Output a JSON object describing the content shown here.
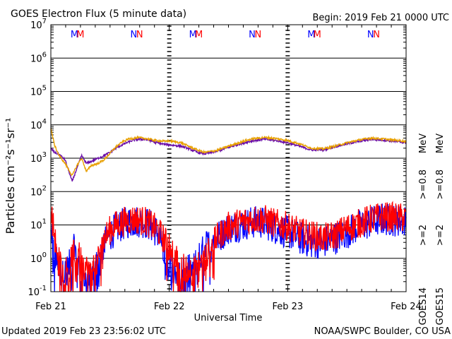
{
  "chart_data": {
    "type": "line",
    "title": "GOES Electron Flux (5 minute data)",
    "begin_label": "Begin: 2019 Feb 21 0000 UTC",
    "xlabel": "Universal Time",
    "ylabel": "Particles cm⁻²s⁻¹sr⁻¹",
    "y_scale": "log",
    "ylim": [
      0.1,
      10000000
    ],
    "xlim_days": [
      0,
      3
    ],
    "x_ticks": [
      {
        "label": "Feb 21",
        "day": 0
      },
      {
        "label": "Feb 22",
        "day": 1
      },
      {
        "label": "Feb 23",
        "day": 2
      },
      {
        "label": "Feb 24",
        "day": 3
      }
    ],
    "y_ticks": [
      {
        "base": "10",
        "exp": "7",
        "value": 10000000
      },
      {
        "base": "10",
        "exp": "6",
        "value": 1000000
      },
      {
        "base": "10",
        "exp": "5",
        "value": 100000
      },
      {
        "base": "10",
        "exp": "4",
        "value": 10000
      },
      {
        "base": "10",
        "exp": "3",
        "value": 1000
      },
      {
        "base": "10",
        "exp": "2",
        "value": 100
      },
      {
        "base": "10",
        "exp": "1",
        "value": 10
      },
      {
        "base": "10",
        "exp": "0",
        "value": 1
      },
      {
        "base": "10",
        "exp": "-1",
        "value": 0.1
      }
    ],
    "threshold": {
      "value": 1000,
      "style": "dashed"
    },
    "noon_markers": [
      {
        "day": 0.2,
        "label": "M",
        "color": "#0000ff"
      },
      {
        "day": 0.25,
        "label": "M",
        "color": "#ff0000"
      },
      {
        "day": 0.7,
        "label": "N",
        "color": "#0000ff"
      },
      {
        "day": 0.75,
        "label": "N",
        "color": "#ff0000"
      },
      {
        "day": 1.2,
        "label": "M",
        "color": "#0000ff"
      },
      {
        "day": 1.25,
        "label": "M",
        "color": "#ff0000"
      },
      {
        "day": 1.7,
        "label": "N",
        "color": "#0000ff"
      },
      {
        "day": 1.75,
        "label": "N",
        "color": "#ff0000"
      },
      {
        "day": 2.2,
        "label": "M",
        "color": "#0000ff"
      },
      {
        "day": 2.25,
        "label": "M",
        "color": "#ff0000"
      },
      {
        "day": 2.7,
        "label": "N",
        "color": "#0000ff"
      },
      {
        "day": 2.75,
        "label": "N",
        "color": "#ff0000"
      }
    ],
    "legend": {
      "placement": "right",
      "satellites": [
        {
          "label": "GOES14",
          "color": "#000000"
        },
        {
          "label": "GOES15",
          "color": "#000000"
        }
      ],
      "entries": [
        {
          "label": ">=2",
          "color": "#0000ff"
        },
        {
          "label": ">=2",
          "color": "#ff0000"
        },
        {
          "label": ">=0.8",
          "color": "#6a0da8"
        },
        {
          "label": ">=0.8",
          "color": "#e8a000"
        },
        {
          "label": "MeV",
          "color": "#000000"
        },
        {
          "label": "MeV",
          "color": "#000000"
        }
      ]
    },
    "series": [
      {
        "name": "GOES14 >=0.8 MeV",
        "color": "#6a0da8",
        "noise": 0.03,
        "x": [
          0,
          0.03,
          0.07,
          0.12,
          0.18,
          0.22,
          0.26,
          0.3,
          0.34,
          0.4,
          0.45,
          0.5,
          0.55,
          0.6,
          0.65,
          0.7,
          0.75,
          0.8,
          0.85,
          0.88,
          0.92,
          0.96,
          1.0,
          1.05,
          1.1,
          1.15,
          1.2,
          1.25,
          1.3,
          1.4,
          1.5,
          1.6,
          1.7,
          1.8,
          1.9,
          2.0,
          2.1,
          2.2,
          2.3,
          2.4,
          2.5,
          2.6,
          2.7,
          2.8,
          2.9,
          3.0
        ],
        "y": [
          2000,
          1500,
          1300,
          900,
          200,
          500,
          1200,
          700,
          800,
          1000,
          1200,
          1500,
          2000,
          2500,
          3000,
          3500,
          3700,
          3600,
          3300,
          3000,
          2800,
          2600,
          2500,
          2400,
          2300,
          2000,
          1700,
          1450,
          1350,
          1600,
          2100,
          2700,
          3300,
          3700,
          3400,
          2900,
          2300,
          1750,
          1800,
          2200,
          2700,
          3200,
          3700,
          3500,
          3200,
          2900
        ]
      },
      {
        "name": "GOES15 >=0.8 MeV",
        "color": "#e8a000",
        "noise": 0.03,
        "x": [
          0,
          0.03,
          0.07,
          0.12,
          0.18,
          0.22,
          0.26,
          0.3,
          0.34,
          0.4,
          0.45,
          0.5,
          0.55,
          0.6,
          0.65,
          0.7,
          0.75,
          0.8,
          0.85,
          0.88,
          0.92,
          0.96,
          1.0,
          1.05,
          1.1,
          1.15,
          1.2,
          1.25,
          1.3,
          1.4,
          1.5,
          1.6,
          1.7,
          1.8,
          1.9,
          2.0,
          2.1,
          2.2,
          2.3,
          2.4,
          2.5,
          2.6,
          2.7,
          2.8,
          2.9,
          3.0
        ],
        "y": [
          8000,
          2500,
          1200,
          700,
          300,
          600,
          1000,
          400,
          600,
          700,
          900,
          1400,
          2200,
          3000,
          3700,
          4000,
          4100,
          3900,
          3600,
          3400,
          3300,
          3200,
          3300,
          3100,
          2900,
          2400,
          2000,
          1700,
          1500,
          1700,
          2300,
          3000,
          3800,
          4200,
          3900,
          3400,
          2700,
          2000,
          1900,
          2300,
          2900,
          3500,
          4000,
          3800,
          3500,
          3200
        ]
      },
      {
        "name": "GOES14 >=2 MeV",
        "color": "#0000ff",
        "noise": 0.5,
        "x": [
          0,
          0.05,
          0.1,
          0.15,
          0.2,
          0.25,
          0.3,
          0.35,
          0.4,
          0.45,
          0.5,
          0.55,
          0.6,
          0.65,
          0.7,
          0.75,
          0.8,
          0.85,
          0.9,
          0.95,
          1.0,
          1.1,
          1.2,
          1.3,
          1.4,
          1.5,
          1.6,
          1.7,
          1.8,
          1.9,
          2.0,
          2.1,
          2.2,
          2.3,
          2.4,
          2.5,
          2.6,
          2.7,
          2.8,
          2.9,
          3.0
        ],
        "y": [
          5,
          0.8,
          0.3,
          0.5,
          2,
          0.4,
          0.2,
          0.3,
          0.8,
          3,
          5,
          8,
          10,
          12,
          13,
          13,
          12,
          9,
          6,
          2,
          0.8,
          0.3,
          0.5,
          2,
          4,
          8,
          10,
          12,
          12,
          8,
          6,
          4,
          3,
          3,
          4,
          6,
          9,
          12,
          15,
          14,
          13
        ]
      },
      {
        "name": "GOES15 >=2 MeV",
        "color": "#ff0000",
        "noise": 0.45,
        "x": [
          0,
          0.05,
          0.1,
          0.15,
          0.2,
          0.25,
          0.3,
          0.35,
          0.4,
          0.45,
          0.5,
          0.55,
          0.6,
          0.65,
          0.7,
          0.75,
          0.8,
          0.85,
          0.9,
          0.95,
          1.0,
          1.1,
          1.2,
          1.3,
          1.4,
          1.5,
          1.6,
          1.7,
          1.8,
          1.9,
          2.0,
          2.1,
          2.2,
          2.3,
          2.4,
          2.5,
          2.6,
          2.7,
          2.8,
          2.9,
          3.0
        ],
        "y": [
          30,
          1.5,
          0.4,
          0.6,
          1.5,
          1,
          0.5,
          0.4,
          1,
          4,
          7,
          10,
          12,
          14,
          15,
          14,
          13,
          10,
          7,
          4,
          2,
          0.6,
          0.4,
          1,
          4,
          9,
          12,
          15,
          15,
          11,
          9,
          6,
          5,
          4,
          5,
          8,
          11,
          15,
          18,
          17,
          16
        ]
      }
    ]
  },
  "footer": {
    "updated": "Updated 2019 Feb 23 23:56:02 UTC",
    "credit": "NOAA/SWPC Boulder, CO USA"
  }
}
